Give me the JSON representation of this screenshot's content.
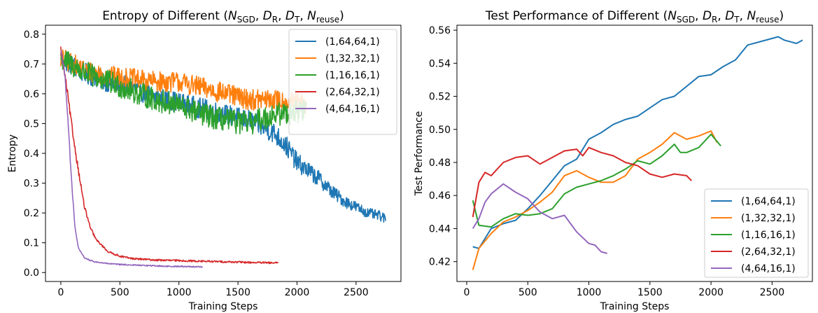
{
  "chart_data": [
    {
      "type": "line",
      "title_prefix": "Entropy of  Different (",
      "title_vars": [
        "N",
        "SGD",
        "D",
        "R",
        "D",
        "T",
        "N",
        "reuse"
      ],
      "xlabel": "Training Steps",
      "ylabel": "Entropy",
      "xlim": [
        -130,
        2880
      ],
      "ylim": [
        -0.03,
        0.83
      ],
      "xticks": [
        0,
        500,
        1000,
        1500,
        2000,
        2500
      ],
      "yticks": [
        0.0,
        0.1,
        0.2,
        0.3,
        0.4,
        0.5,
        0.6,
        0.7,
        0.8
      ],
      "ytick_labels": [
        "0.0",
        "0.1",
        "0.2",
        "0.3",
        "0.4",
        "0.5",
        "0.6",
        "0.7",
        "0.8"
      ],
      "legend_loc": "upper right",
      "noisy": true,
      "series": [
        {
          "name": "(1,64,64,1)",
          "color": "#1f77b4",
          "noise": 0.035,
          "x": [
            0,
            200,
            400,
            600,
            800,
            1000,
            1200,
            1400,
            1600,
            1800,
            1900,
            2000,
            2100,
            2200,
            2300,
            2400,
            2500,
            2600,
            2700,
            2750
          ],
          "y": [
            0.72,
            0.67,
            0.64,
            0.62,
            0.59,
            0.57,
            0.55,
            0.53,
            0.51,
            0.47,
            0.43,
            0.37,
            0.34,
            0.31,
            0.27,
            0.24,
            0.22,
            0.2,
            0.19,
            0.18
          ]
        },
        {
          "name": "(1,32,32,1)",
          "color": "#ff7f0e",
          "noise": 0.035,
          "x": [
            0,
            200,
            400,
            600,
            800,
            1000,
            1200,
            1400,
            1600,
            1800,
            2000,
            2080
          ],
          "y": [
            0.72,
            0.68,
            0.66,
            0.65,
            0.64,
            0.64,
            0.62,
            0.6,
            0.58,
            0.58,
            0.57,
            0.56
          ]
        },
        {
          "name": "(1,16,16,1)",
          "color": "#2ca02c",
          "noise": 0.04,
          "x": [
            0,
            200,
            400,
            600,
            800,
            1000,
            1200,
            1400,
            1600,
            1800,
            2000,
            2080
          ],
          "y": [
            0.72,
            0.67,
            0.64,
            0.61,
            0.58,
            0.56,
            0.53,
            0.51,
            0.5,
            0.53,
            0.54,
            0.55
          ]
        },
        {
          "name": "(2,64,32,1)",
          "color": "#d62728",
          "noise": 0.012,
          "x": [
            0,
            50,
            100,
            150,
            200,
            250,
            300,
            350,
            400,
            500,
            600,
            800,
            1000,
            1200,
            1400,
            1600,
            1840
          ],
          "y": [
            0.75,
            0.62,
            0.47,
            0.34,
            0.22,
            0.15,
            0.11,
            0.09,
            0.07,
            0.055,
            0.047,
            0.042,
            0.04,
            0.038,
            0.036,
            0.034,
            0.032
          ]
        },
        {
          "name": "(4,64,16,1)",
          "color": "#9467bd",
          "noise": 0.008,
          "x": [
            0,
            30,
            60,
            90,
            120,
            150,
            200,
            250,
            300,
            400,
            500,
            700,
            900,
            1100,
            1200
          ],
          "y": [
            0.75,
            0.68,
            0.52,
            0.31,
            0.15,
            0.08,
            0.05,
            0.04,
            0.035,
            0.03,
            0.027,
            0.024,
            0.021,
            0.02,
            0.019
          ]
        }
      ]
    },
    {
      "type": "line",
      "title_prefix": "Test Performance of Different (",
      "title_vars": [
        "N",
        "SGD",
        "D",
        "R",
        "D",
        "T",
        "N",
        "reuse"
      ],
      "xlabel": "Training Steps",
      "ylabel": "Test Performance",
      "xlim": [
        -80,
        2830
      ],
      "ylim": [
        0.408,
        0.563
      ],
      "xticks": [
        0,
        500,
        1000,
        1500,
        2000,
        2500
      ],
      "yticks": [
        0.42,
        0.44,
        0.46,
        0.48,
        0.5,
        0.52,
        0.54,
        0.56
      ],
      "ytick_labels": [
        "0.42",
        "0.44",
        "0.46",
        "0.48",
        "0.50",
        "0.52",
        "0.54",
        "0.56"
      ],
      "legend_loc": "lower right",
      "noisy": false,
      "series": [
        {
          "name": "(1,64,64,1)",
          "color": "#1f77b4",
          "x": [
            50,
            100,
            200,
            300,
            400,
            500,
            600,
            700,
            800,
            900,
            1000,
            1100,
            1200,
            1300,
            1400,
            1500,
            1600,
            1700,
            1800,
            1900,
            2000,
            2100,
            2200,
            2300,
            2400,
            2500,
            2550,
            2600,
            2700,
            2750
          ],
          "y": [
            0.429,
            0.428,
            0.44,
            0.443,
            0.445,
            0.452,
            0.46,
            0.469,
            0.478,
            0.482,
            0.494,
            0.498,
            0.503,
            0.506,
            0.508,
            0.513,
            0.518,
            0.52,
            0.526,
            0.532,
            0.533,
            0.538,
            0.542,
            0.551,
            0.553,
            0.555,
            0.556,
            0.554,
            0.552,
            0.554
          ]
        },
        {
          "name": "(1,32,32,1)",
          "color": "#ff7f0e",
          "x": [
            50,
            100,
            200,
            300,
            400,
            500,
            600,
            700,
            800,
            900,
            1000,
            1100,
            1200,
            1300,
            1400,
            1500,
            1600,
            1700,
            1800,
            1900,
            2000,
            2050
          ],
          "y": [
            0.415,
            0.428,
            0.437,
            0.444,
            0.447,
            0.451,
            0.456,
            0.462,
            0.472,
            0.475,
            0.471,
            0.468,
            0.468,
            0.472,
            0.482,
            0.486,
            0.491,
            0.498,
            0.494,
            0.496,
            0.499,
            0.492
          ]
        },
        {
          "name": "(1,16,16,1)",
          "color": "#2ca02c",
          "x": [
            50,
            100,
            200,
            300,
            400,
            500,
            600,
            700,
            800,
            900,
            1000,
            1100,
            1200,
            1300,
            1400,
            1500,
            1600,
            1700,
            1750,
            1800,
            1900,
            2000,
            2080
          ],
          "y": [
            0.457,
            0.442,
            0.441,
            0.446,
            0.449,
            0.448,
            0.449,
            0.452,
            0.461,
            0.465,
            0.467,
            0.469,
            0.472,
            0.476,
            0.481,
            0.479,
            0.484,
            0.491,
            0.486,
            0.486,
            0.489,
            0.497,
            0.49
          ]
        },
        {
          "name": "(2,64,32,1)",
          "color": "#d62728",
          "x": [
            50,
            100,
            150,
            200,
            300,
            400,
            500,
            600,
            700,
            800,
            900,
            950,
            1000,
            1100,
            1200,
            1300,
            1400,
            1500,
            1600,
            1700,
            1800,
            1840
          ],
          "y": [
            0.447,
            0.468,
            0.474,
            0.472,
            0.48,
            0.483,
            0.484,
            0.479,
            0.483,
            0.487,
            0.488,
            0.484,
            0.489,
            0.486,
            0.484,
            0.48,
            0.478,
            0.473,
            0.471,
            0.473,
            0.472,
            0.469
          ]
        },
        {
          "name": "(4,64,16,1)",
          "color": "#9467bd",
          "x": [
            50,
            100,
            150,
            200,
            300,
            400,
            500,
            600,
            700,
            800,
            900,
            1000,
            1050,
            1100,
            1150
          ],
          "y": [
            0.44,
            0.446,
            0.456,
            0.461,
            0.467,
            0.462,
            0.458,
            0.45,
            0.446,
            0.448,
            0.438,
            0.431,
            0.43,
            0.426,
            0.425
          ]
        }
      ]
    }
  ]
}
